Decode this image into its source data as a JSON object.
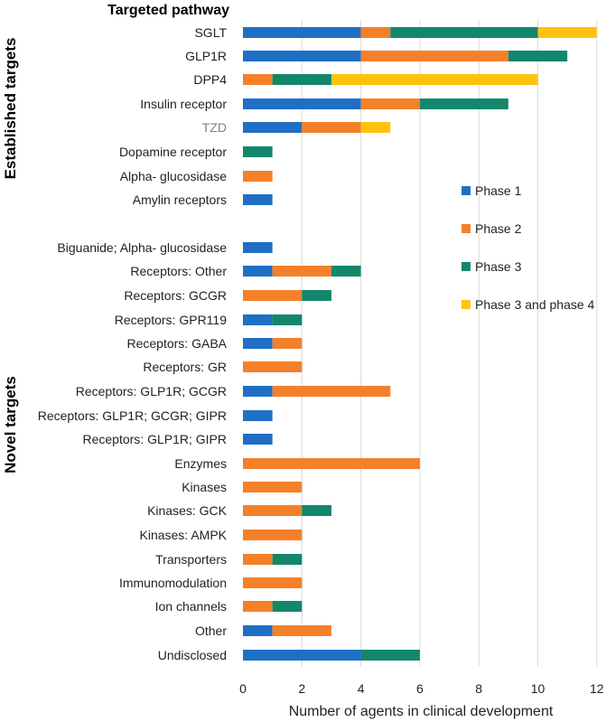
{
  "chart_data": {
    "type": "bar",
    "orientation": "horizontal",
    "stacked": true,
    "pathway_title": "Targeted pathway",
    "xlabel": "Number of agents in clinical development",
    "xlim": [
      0,
      12
    ],
    "xticks": [
      0,
      2,
      4,
      6,
      8,
      10,
      12
    ],
    "grid": true,
    "legend_position": "right",
    "groups": [
      {
        "label": "Established targets",
        "categories": [
          "SGLT",
          "GLP1R",
          "DPP4",
          "Insulin receptor",
          "TZD",
          "Dopamine receptor",
          "Alpha- glucosidase",
          "Amylin receptors"
        ]
      },
      {
        "label": "Novel targets",
        "categories": [
          "Biguanide; Alpha- glucosidase",
          "Receptors: Other",
          "Receptors: GCGR",
          "Receptors: GPR119",
          "Receptors: GABA",
          "Receptors: GR",
          "Receptors: GLP1R; GCGR",
          "Receptors: GLP1R; GCGR; GIPR",
          "Receptors: GLP1R; GIPR",
          "Enzymes",
          "Kinases",
          "Kinases: GCK",
          "Kinases: AMPK",
          "Transporters",
          "Immunomodulation",
          "Ion channels",
          "Other",
          "Undisclosed"
        ]
      }
    ],
    "categories": [
      "SGLT",
      "GLP1R",
      "DPP4",
      "Insulin receptor",
      "TZD",
      "Dopamine receptor",
      "Alpha- glucosidase",
      "Amylin receptors",
      "Biguanide; Alpha- glucosidase",
      "Receptors: Other",
      "Receptors: GCGR",
      "Receptors: GPR119",
      "Receptors: GABA",
      "Receptors: GR",
      "Receptors: GLP1R; GCGR",
      "Receptors: GLP1R; GCGR; GIPR",
      "Receptors: GLP1R; GIPR",
      "Enzymes",
      "Kinases",
      "Kinases: GCK",
      "Kinases: AMPK",
      "Transporters",
      "Immunomodulation",
      "Ion channels",
      "Other",
      "Undisclosed"
    ],
    "series": [
      {
        "name": "Phase 1",
        "color": "#1f6fc5",
        "values": [
          4,
          4,
          0,
          4,
          2,
          0,
          0,
          1,
          1,
          1,
          0,
          1,
          1,
          0,
          1,
          1,
          1,
          0,
          0,
          0,
          0,
          0,
          0,
          0,
          1,
          4
        ]
      },
      {
        "name": "Phase 2",
        "color": "#f5802a",
        "values": [
          1,
          5,
          1,
          2,
          2,
          0,
          1,
          0,
          0,
          2,
          2,
          0,
          1,
          2,
          4,
          0,
          0,
          6,
          2,
          2,
          2,
          1,
          2,
          1,
          2,
          0
        ]
      },
      {
        "name": "Phase 3",
        "color": "#13876b",
        "values": [
          5,
          2,
          2,
          3,
          0,
          1,
          0,
          0,
          0,
          1,
          1,
          1,
          0,
          0,
          0,
          0,
          0,
          0,
          0,
          1,
          0,
          1,
          0,
          1,
          0,
          2
        ]
      },
      {
        "name": "Phase 3 and phase 4",
        "color": "#ffc20e",
        "values": [
          2,
          0,
          7,
          0,
          1,
          0,
          0,
          0,
          0,
          0,
          0,
          0,
          0,
          0,
          0,
          0,
          0,
          0,
          0,
          0,
          0,
          0,
          0,
          0,
          0,
          0
        ]
      }
    ],
    "muted_categories": [
      "TZD"
    ]
  }
}
